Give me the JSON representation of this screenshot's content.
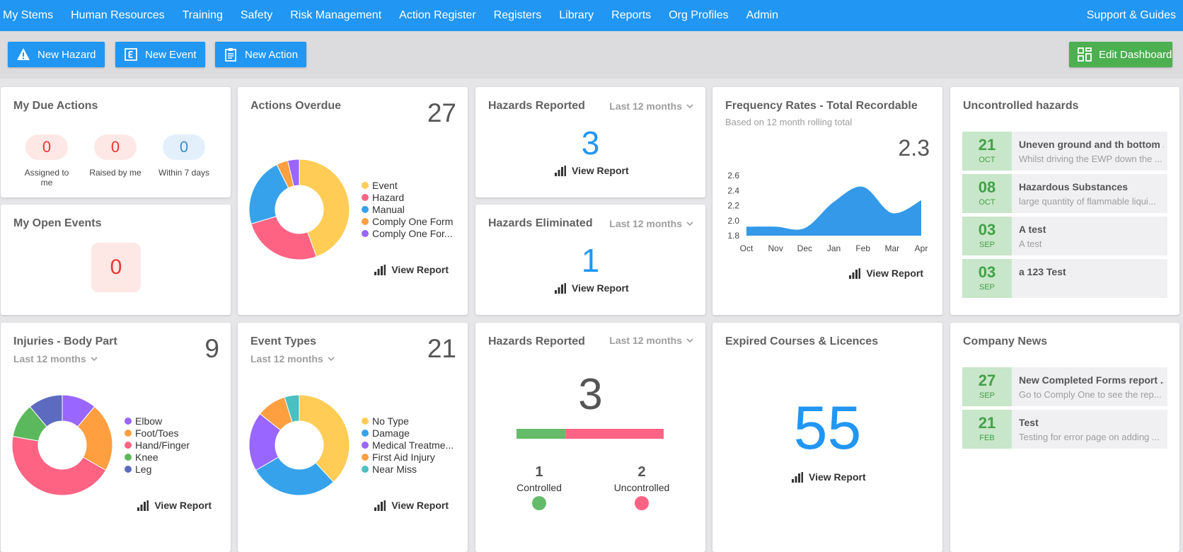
{
  "nav": {
    "items": [
      "My Stems",
      "Human Resources",
      "Training",
      "Safety",
      "Risk Management",
      "Action Register",
      "Registers",
      "Library",
      "Reports",
      "Org Profiles",
      "Admin"
    ],
    "support": "Support & Guides"
  },
  "toolbar": {
    "new_hazard": "New Hazard",
    "new_event": "New Event",
    "new_action": "New Action",
    "edit_dashboard": "Edit Dashboard"
  },
  "my_due_actions": {
    "title": "My Due Actions",
    "items": [
      {
        "value": 0,
        "label": "Assigned to me"
      },
      {
        "value": 0,
        "label": "Raised by me"
      },
      {
        "value": 0,
        "label": "Within 7 days"
      }
    ]
  },
  "my_open_events": {
    "title": "My Open Events",
    "value": 0
  },
  "actions_overdue": {
    "title": "Actions Overdue",
    "total": 27,
    "link": "View Report",
    "chart": {
      "type": "pie",
      "categories": [
        "Event",
        "Hazard",
        "Manual",
        "Comply One Form",
        "Comply One For..."
      ],
      "values": [
        12,
        7,
        6,
        1,
        1
      ],
      "colors": [
        "#ffcd56",
        "#ff6384",
        "#36a2eb",
        "#ff9f40",
        "#9966ff"
      ]
    }
  },
  "hazards_reported": {
    "title": "Hazards Reported",
    "period": "Last 12 months",
    "value": 3,
    "link": "View Report"
  },
  "hazards_eliminated": {
    "title": "Hazards Eliminated",
    "period": "Last 12 months",
    "value": 1,
    "link": "View Report"
  },
  "frequency_rates": {
    "title": "Frequency Rates - Total Recordable",
    "subtitle": "Based on 12 month rolling total",
    "value": 2.3,
    "link": "View Report",
    "chart": {
      "type": "line",
      "categories": [
        "Oct",
        "Nov",
        "Dec",
        "Jan",
        "Feb",
        "Mar",
        "Apr"
      ],
      "values": [
        1.92,
        1.92,
        1.9,
        2.25,
        2.45,
        2.1,
        2.27
      ],
      "color": "#3399e8",
      "ylim": [
        1.8,
        2.6
      ],
      "yticks": [
        1.8,
        {
          "value": 2,
          "label": "2.0"
        },
        2.2,
        2.4,
        2.6
      ]
    }
  },
  "uncontrolled_hazards": {
    "title": "Uncontrolled hazards",
    "items": [
      {
        "day": "21",
        "month": "OCT",
        "title": "Uneven ground and th bottom ...",
        "description": "Whilst driving the EWP down the ..."
      },
      {
        "day": "08",
        "month": "OCT",
        "title": "Hazardous Substances",
        "description": "large quantity of flammable liqui..."
      },
      {
        "day": "03",
        "month": "SEP",
        "title": "A test",
        "description": "A test"
      },
      {
        "day": "03",
        "month": "SEP",
        "title": "a 123 Test"
      }
    ]
  },
  "injuries_body_part": {
    "title": "Injuries - Body Part",
    "period": "Last 12 months",
    "total": 9,
    "link": "View Report",
    "chart": {
      "type": "pie",
      "categories": [
        "Elbow",
        "Foot/Toes",
        "Hand/Finger",
        "Knee",
        "Leg"
      ],
      "values": [
        1,
        2,
        4,
        1,
        1
      ],
      "colors": [
        "#9966ff",
        "#ff9f40",
        "#ff6384",
        "#5cb85c",
        "#5c6bc0"
      ]
    }
  },
  "event_types": {
    "title": "Event Types",
    "period": "Last 12 months",
    "total": 21,
    "link": "View Report",
    "chart": {
      "type": "pie",
      "categories": [
        "No Type",
        "Damage",
        "Medical Treatme...",
        "First Aid Injury",
        "Near Miss"
      ],
      "values": [
        8,
        6,
        4,
        2,
        1
      ],
      "colors": [
        "#ffcd56",
        "#36a2eb",
        "#9966ff",
        "#ff9f40",
        "#4bc0c0"
      ]
    }
  },
  "hazards_reported_status": {
    "title": "Hazards Reported",
    "period": "Last 12 months",
    "total": 3,
    "controlled": {
      "value": 1,
      "label": "Controlled",
      "color": "#66bb6a"
    },
    "uncontrolled": {
      "value": 2,
      "label": "Uncontrolled",
      "color": "#ff6384"
    }
  },
  "expired_courses": {
    "title": "Expired Courses & Licences",
    "value": 55,
    "link": "View Report"
  },
  "company_news": {
    "title": "Company News",
    "items": [
      {
        "day": "27",
        "month": "SEP",
        "title": "New Completed Forms report ...",
        "description": "Go to Comply One to see the rep..."
      },
      {
        "day": "21",
        "month": "FEB",
        "title": "Test",
        "description": "Testing for error page on adding ..."
      }
    ]
  }
}
